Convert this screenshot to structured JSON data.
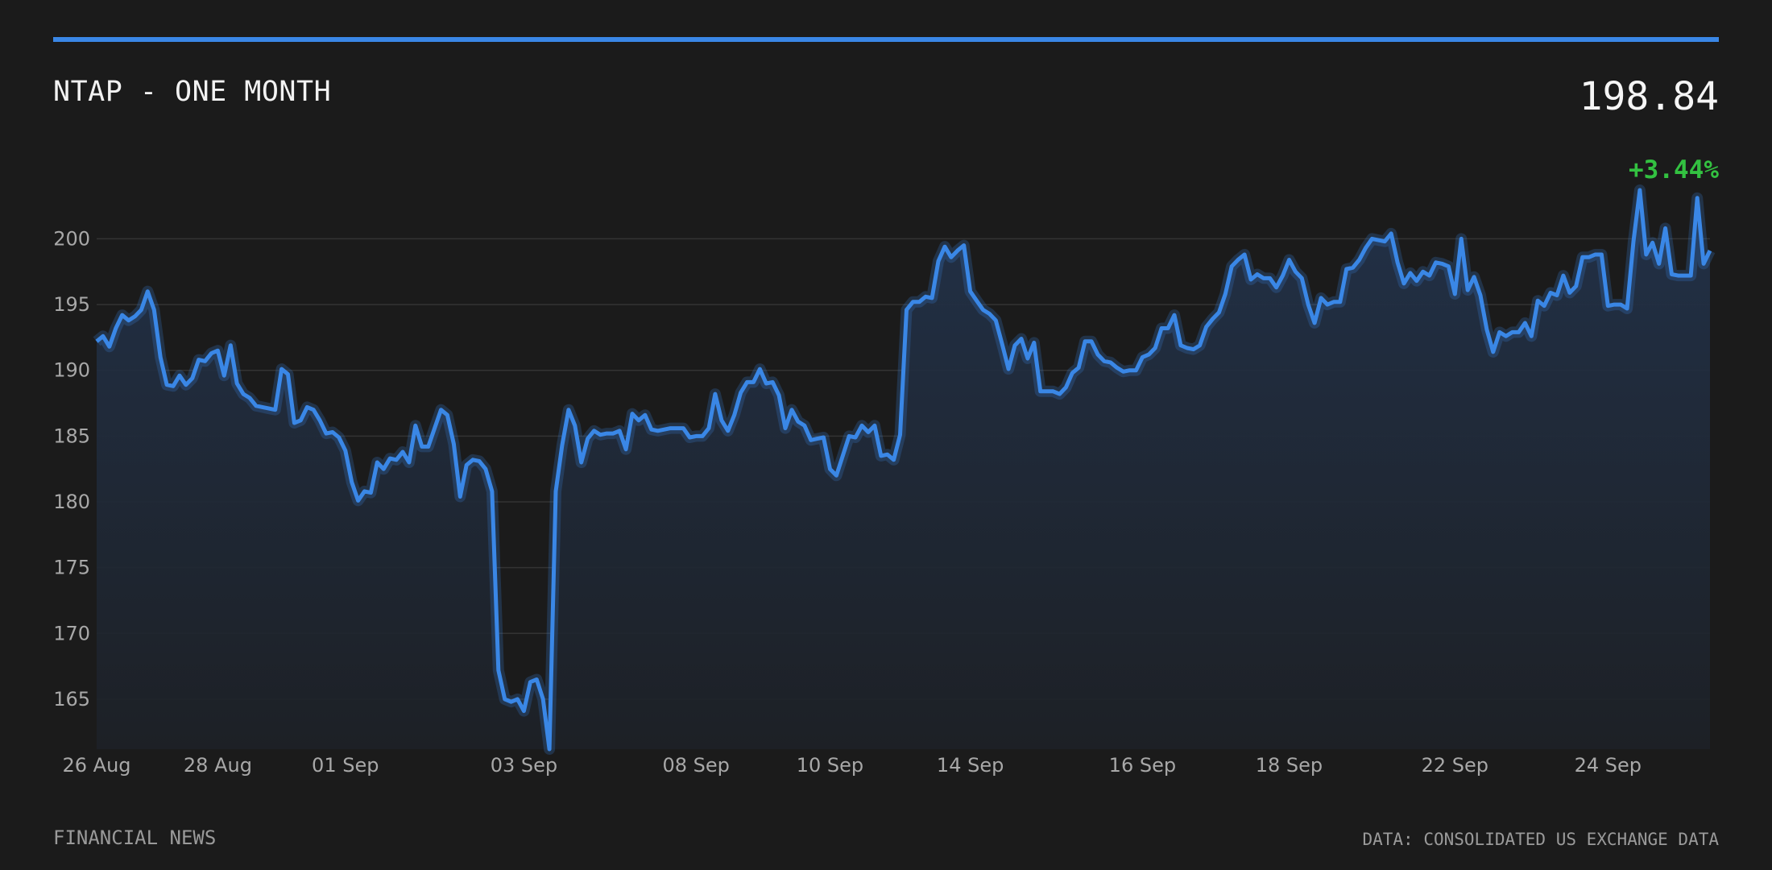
{
  "header": {
    "title": "NTAP - ONE MONTH",
    "price": "198.84",
    "change": "+3.44%",
    "accent_color": "#3a87e6",
    "change_color": "#33c141"
  },
  "footer": {
    "left": "FINANCIAL NEWS",
    "right": "DATA: CONSOLIDATED US EXCHANGE DATA"
  },
  "chart_data": {
    "type": "area",
    "title": "NTAP - ONE MONTH",
    "xlabel": "",
    "ylabel": "",
    "ylim": [
      161.2,
      203.7
    ],
    "yticks": [
      165,
      170,
      175,
      180,
      185,
      190,
      195,
      200
    ],
    "grid": true,
    "line_color": "#3a87e6",
    "x_ticks": [
      {
        "label": "26 Aug",
        "index": 0
      },
      {
        "label": "28 Aug",
        "index": 19
      },
      {
        "label": "01 Sep",
        "index": 39
      },
      {
        "label": "03 Sep",
        "index": 67
      },
      {
        "label": "08 Sep",
        "index": 94
      },
      {
        "label": "10 Sep",
        "index": 115
      },
      {
        "label": "14 Sep",
        "index": 137
      },
      {
        "label": "16 Sep",
        "index": 164
      },
      {
        "label": "18 Sep",
        "index": 187
      },
      {
        "label": "22 Sep",
        "index": 213
      },
      {
        "label": "24 Sep",
        "index": 237
      }
    ],
    "values": [
      192.2,
      192.6,
      191.8,
      193.2,
      194.2,
      193.8,
      194.1,
      194.6,
      196.0,
      194.6,
      191.0,
      188.9,
      188.8,
      189.6,
      188.9,
      189.4,
      190.8,
      190.7,
      191.3,
      191.5,
      189.6,
      191.9,
      189.0,
      188.2,
      187.9,
      187.3,
      187.2,
      187.1,
      187.0,
      190.1,
      189.7,
      186.0,
      186.2,
      187.2,
      187.0,
      186.2,
      185.2,
      185.3,
      184.9,
      183.9,
      181.5,
      180.1,
      180.8,
      180.7,
      183.0,
      182.5,
      183.3,
      183.2,
      183.8,
      183.0,
      185.8,
      184.2,
      184.2,
      185.6,
      187.0,
      186.6,
      184.4,
      180.4,
      182.8,
      183.2,
      183.1,
      182.5,
      180.8,
      167.2,
      165.0,
      164.8,
      165.0,
      164.1,
      166.3,
      166.5,
      165.0,
      161.2,
      180.8,
      184.3,
      187.0,
      185.8,
      183.0,
      184.8,
      185.4,
      185.1,
      185.2,
      185.2,
      185.4,
      184.0,
      186.7,
      186.2,
      186.6,
      185.5,
      185.4,
      185.5,
      185.6,
      185.6,
      185.6,
      184.9,
      185.0,
      185.0,
      185.6,
      188.2,
      186.2,
      185.4,
      186.6,
      188.3,
      189.1,
      189.1,
      190.1,
      189.0,
      189.1,
      188.1,
      185.6,
      187.0,
      186.1,
      185.8,
      184.7,
      184.8,
      184.9,
      182.5,
      182.0,
      183.5,
      185.0,
      184.9,
      185.8,
      185.3,
      185.8,
      183.5,
      183.6,
      183.2,
      185.1,
      194.6,
      195.2,
      195.2,
      195.6,
      195.5,
      198.3,
      199.4,
      198.6,
      199.1,
      199.5,
      196.0,
      195.3,
      194.6,
      194.3,
      193.8,
      192.0,
      190.1,
      191.9,
      192.4,
      190.9,
      192.1,
      188.4,
      188.4,
      188.4,
      188.2,
      188.7,
      189.8,
      190.2,
      192.2,
      192.2,
      191.2,
      190.7,
      190.6,
      190.2,
      189.9,
      190.0,
      190.0,
      191.0,
      191.2,
      191.7,
      193.2,
      193.2,
      194.2,
      191.9,
      191.7,
      191.6,
      191.9,
      193.3,
      193.9,
      194.4,
      195.8,
      197.9,
      198.4,
      198.8,
      196.9,
      197.3,
      197.0,
      197.0,
      196.3,
      197.2,
      198.4,
      197.5,
      197.0,
      195.0,
      193.6,
      195.5,
      195.0,
      195.2,
      195.2,
      197.7,
      197.8,
      198.4,
      199.3,
      200.0,
      199.9,
      199.8,
      200.4,
      198.2,
      196.6,
      197.4,
      196.8,
      197.5,
      197.2,
      198.2,
      198.1,
      197.9,
      195.8,
      200.0,
      196.1,
      197.1,
      195.7,
      193.1,
      191.4,
      192.9,
      192.6,
      192.9,
      192.9,
      193.6,
      192.6,
      195.3,
      194.9,
      195.9,
      195.7,
      197.2,
      195.9,
      196.4,
      198.6,
      198.6,
      198.8,
      198.8,
      194.9,
      195.0,
      195.0,
      194.7,
      199.8,
      203.7,
      198.8,
      199.7,
      198.1,
      200.8,
      197.3,
      197.2,
      197.2,
      197.2,
      203.1,
      198.1,
      199.1
    ]
  }
}
